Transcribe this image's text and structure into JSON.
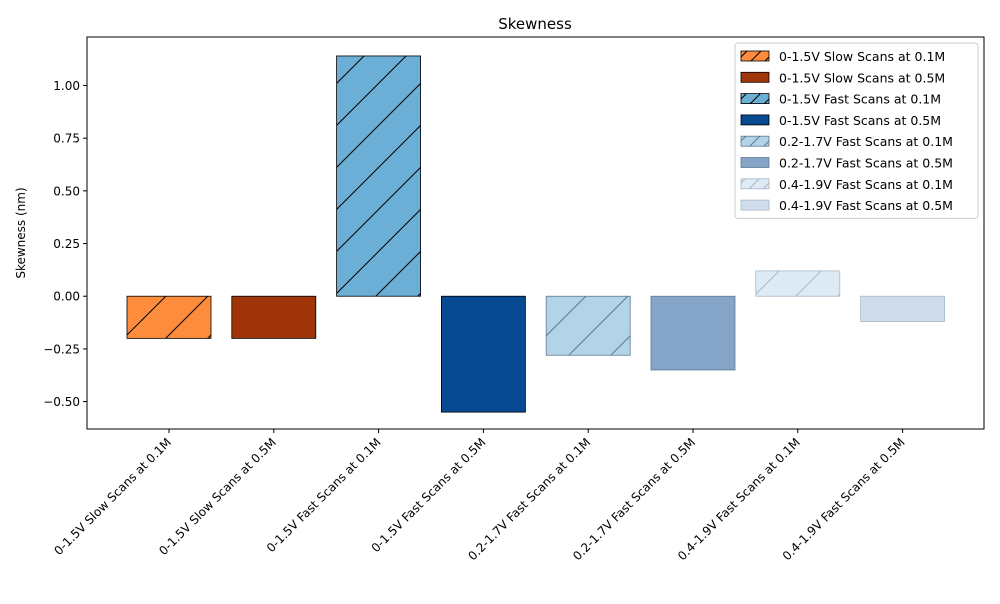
{
  "chart_data": {
    "type": "bar",
    "title": "Skewness",
    "xlabel": "",
    "ylabel": "Skewness (nm)",
    "ylim": [
      -0.63,
      1.23
    ],
    "yticks": [
      -0.5,
      -0.25,
      0.0,
      0.25,
      0.5,
      0.75,
      1.0
    ],
    "ytick_labels": [
      "−0.50",
      "−0.25",
      "0.00",
      "0.25",
      "0.50",
      "0.75",
      "1.00"
    ],
    "grid": false,
    "legend_position": "top-right",
    "categories": [
      "0-1.5V Slow Scans at 0.1M",
      "0-1.5V Slow Scans at 0.5M",
      "0-1.5V Fast Scans at 0.1M",
      "0-1.5V Fast Scans at 0.5M",
      "0.2-1.7V Fast Scans at 0.1M",
      "0.2-1.7V Fast Scans at 0.5M",
      "0.4-1.9V Fast Scans at 0.1M",
      "0.4-1.9V Fast Scans at 0.5M"
    ],
    "values": [
      -0.2,
      -0.2,
      1.14,
      -0.55,
      -0.28,
      -0.35,
      0.12,
      -0.12
    ],
    "colors": [
      "#fd8d3c",
      "#a0350a",
      "#6baed6",
      "#084a91",
      "#b2d3e8",
      "#84a5c8",
      "#deebf5",
      "#cfdcea"
    ],
    "hatched": [
      true,
      false,
      true,
      false,
      true,
      false,
      true,
      false
    ],
    "hatch_colors": [
      "#000000",
      "#000000",
      "#000000",
      "#000000",
      "#5f7a90",
      "#000000",
      "#a9b8c6",
      "#000000"
    ],
    "edge_colors": [
      "#000000",
      "#000000",
      "#000000",
      "#000000",
      "#5f7a90",
      "#5f7a90",
      "#a9b8c6",
      "#a9b8c6"
    ],
    "legend": [
      "0-1.5V Slow Scans at 0.1M",
      "0-1.5V Slow Scans at 0.5M",
      "0-1.5V Fast Scans at 0.1M",
      "0-1.5V Fast Scans at 0.5M",
      "0.2-1.7V Fast Scans at 0.1M",
      "0.2-1.7V Fast Scans at 0.5M",
      "0.4-1.9V Fast Scans at 0.1M",
      "0.4-1.9V Fast Scans at 0.5M"
    ]
  }
}
